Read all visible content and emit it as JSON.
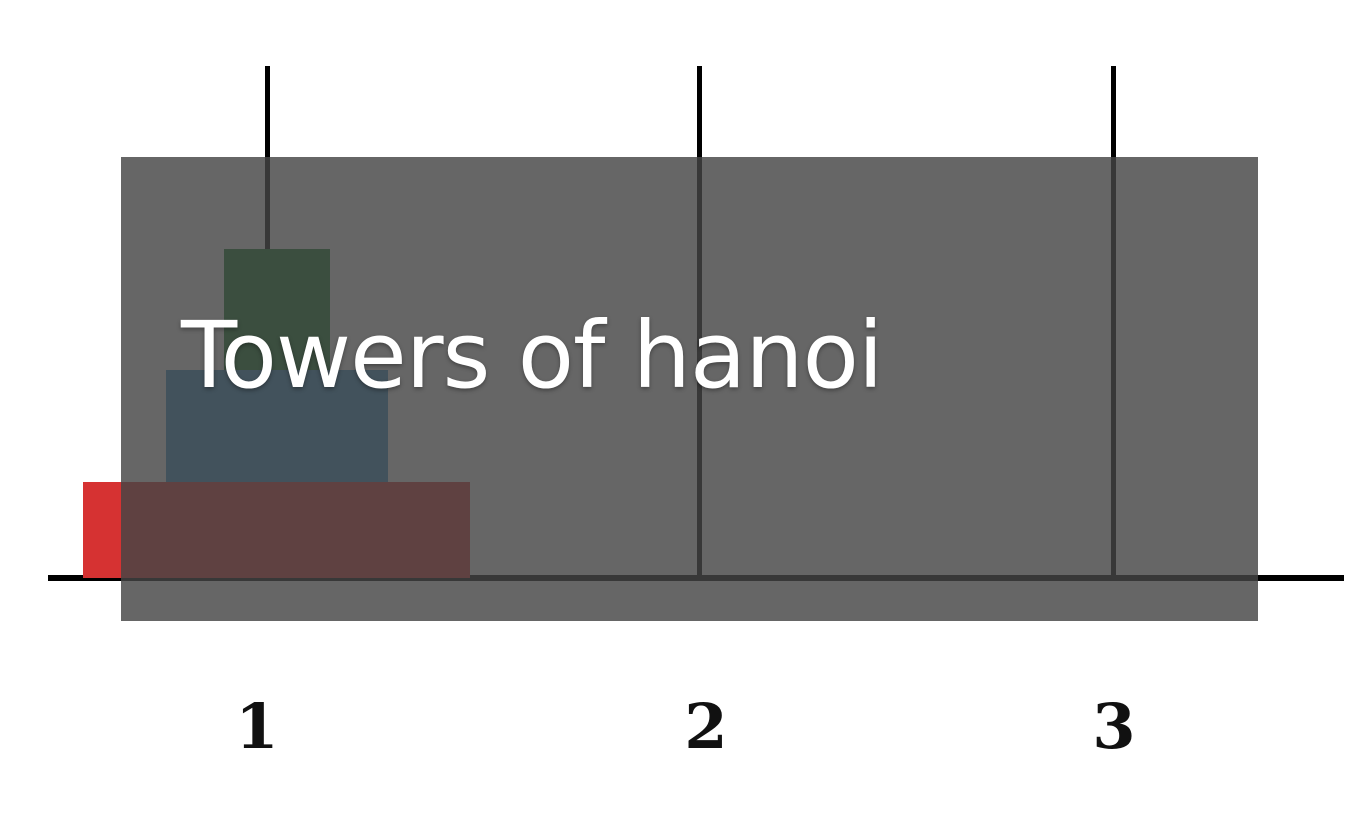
{
  "title": "Towers of hanoi",
  "pegs": [
    {
      "label": "1",
      "disks": [
        "small",
        "medium",
        "large"
      ]
    },
    {
      "label": "2",
      "disks": []
    },
    {
      "label": "3",
      "disks": []
    }
  ],
  "colors": {
    "disk_small": "#0b4a1c",
    "disk_medium": "#1d4a6a",
    "disk_large": "#d63232",
    "rods": "#000000",
    "overlay": "#444444",
    "title": "#ffffff"
  }
}
